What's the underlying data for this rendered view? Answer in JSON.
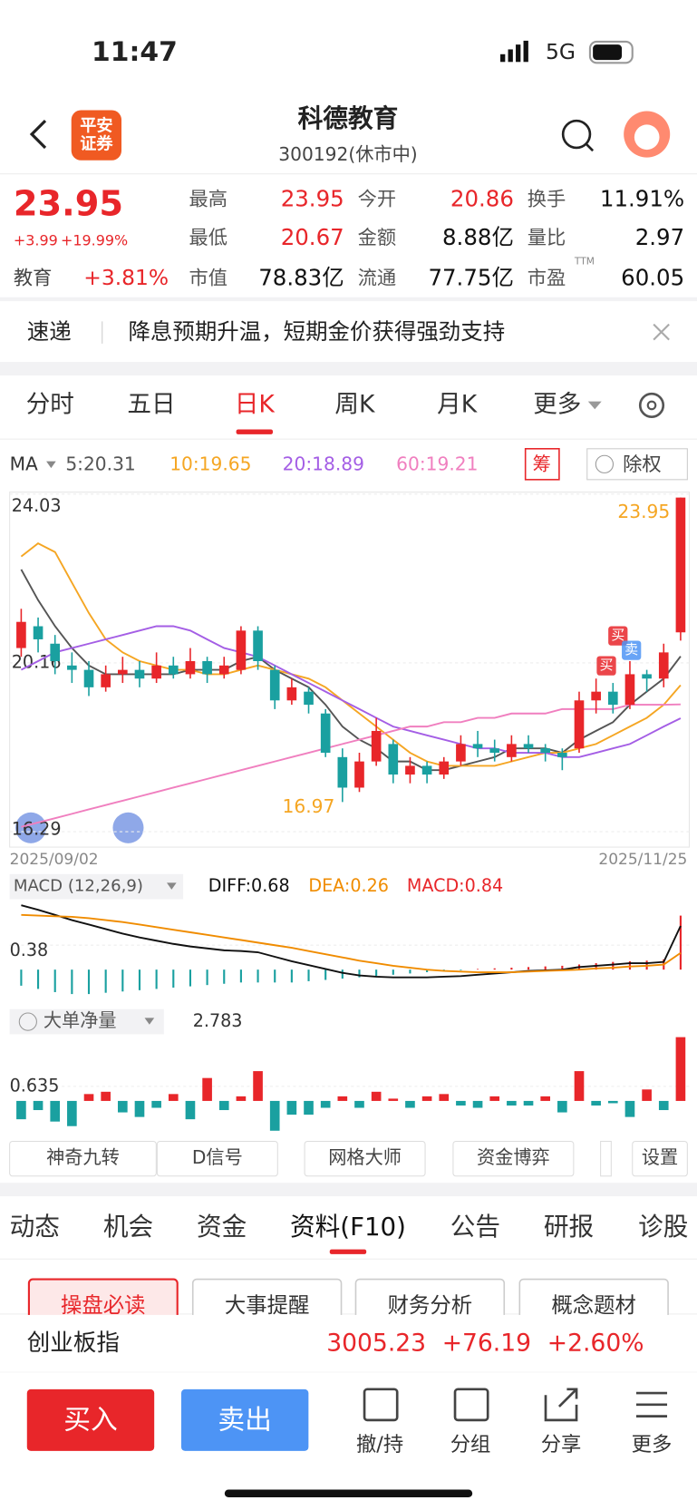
{
  "status": {
    "time": "11:47",
    "network": "5G"
  },
  "header": {
    "logo": [
      "平安",
      "证券"
    ],
    "title": "科德教育",
    "subtitle": "300192(休市中)"
  },
  "quote": {
    "price": "23.95",
    "change": "+3.99",
    "change_pct": "+19.99%",
    "sector": "教育",
    "sector_pct": "+3.81%",
    "fields": [
      [
        "最高",
        "23.95"
      ],
      [
        "今开",
        "20.86"
      ],
      [
        "换手",
        "11.91%"
      ],
      [
        "最低",
        "20.67"
      ],
      [
        "金额",
        "8.88亿"
      ],
      [
        "量比",
        "2.97"
      ],
      [
        "市值",
        "78.83亿"
      ],
      [
        "流通",
        "77.75亿"
      ],
      [
        "市盈",
        "60.05"
      ]
    ],
    "pe_suffix": "TTM"
  },
  "news": {
    "tag": "速递",
    "text": "降息预期升温，短期金价获得强劲支持"
  },
  "period_tabs": [
    "分时",
    "五日",
    "日K",
    "周K",
    "月K",
    "更多"
  ],
  "chart_data": [
    {
      "type": "candlestick",
      "legend_label": "MA",
      "legend": [
        "5:20.31",
        "10:19.65",
        "20:18.89",
        "60:19.21"
      ],
      "chip": "筹",
      "button": "除权",
      "up_color": "#e8262a",
      "down_color": "#1aa0a0",
      "categories": [
        "2025/09/02",
        null,
        null,
        null,
        null,
        null,
        null,
        null,
        null,
        null,
        null,
        null,
        null,
        null,
        null,
        null,
        null,
        null,
        null,
        null,
        null,
        null,
        null,
        null,
        null,
        null,
        null,
        null,
        null,
        null,
        null,
        null,
        null,
        null,
        null,
        null,
        null,
        null,
        null,
        "2025/11/25"
      ],
      "ohlc": [
        [
          20.5,
          21.4,
          20.3,
          21.1
        ],
        [
          21.0,
          21.2,
          20.4,
          20.7
        ],
        [
          20.6,
          20.8,
          19.9,
          20.2
        ],
        [
          20.1,
          20.4,
          19.7,
          20.0
        ],
        [
          20.0,
          20.2,
          19.4,
          19.6
        ],
        [
          19.6,
          20.1,
          19.5,
          19.9
        ],
        [
          19.9,
          20.3,
          19.7,
          20.0
        ],
        [
          20.0,
          20.2,
          19.6,
          19.8
        ],
        [
          19.8,
          20.4,
          19.7,
          20.1
        ],
        [
          20.1,
          20.3,
          19.8,
          19.9
        ],
        [
          19.9,
          20.5,
          19.8,
          20.2
        ],
        [
          20.2,
          20.3,
          19.7,
          19.9
        ],
        [
          19.9,
          20.3,
          19.8,
          20.1
        ],
        [
          20.0,
          21.0,
          19.9,
          20.9
        ],
        [
          20.9,
          21.0,
          20.0,
          20.2
        ],
        [
          20.0,
          20.1,
          19.1,
          19.3
        ],
        [
          19.3,
          19.8,
          19.2,
          19.6
        ],
        [
          19.5,
          19.6,
          19.0,
          19.2
        ],
        [
          19.0,
          19.1,
          18.0,
          18.1
        ],
        [
          18.0,
          18.2,
          16.97,
          17.3
        ],
        [
          17.3,
          18.1,
          17.2,
          17.9
        ],
        [
          17.9,
          18.9,
          17.8,
          18.6
        ],
        [
          18.3,
          18.4,
          17.4,
          17.6
        ],
        [
          17.6,
          18.0,
          17.4,
          17.8
        ],
        [
          17.8,
          17.9,
          17.4,
          17.6
        ],
        [
          17.6,
          18.0,
          17.5,
          17.9
        ],
        [
          17.9,
          18.5,
          17.8,
          18.3
        ],
        [
          18.3,
          18.6,
          18.0,
          18.2
        ],
        [
          18.2,
          18.4,
          17.9,
          18.1
        ],
        [
          18.0,
          18.5,
          17.9,
          18.3
        ],
        [
          18.3,
          18.5,
          18.1,
          18.2
        ],
        [
          18.2,
          18.3,
          17.9,
          18.1
        ],
        [
          18.1,
          18.2,
          17.7,
          18.0
        ],
        [
          18.2,
          19.5,
          18.1,
          19.3
        ],
        [
          19.3,
          19.8,
          19.0,
          19.5
        ],
        [
          19.5,
          19.7,
          19.0,
          19.2
        ],
        [
          19.2,
          20.2,
          19.1,
          19.9
        ],
        [
          19.9,
          20.0,
          19.5,
          19.8
        ],
        [
          19.8,
          20.6,
          19.6,
          20.4
        ],
        [
          20.86,
          23.95,
          20.67,
          23.95
        ]
      ],
      "series": [
        {
          "color": "#555555",
          "values": [
            22.3,
            21.6,
            21.0,
            20.5,
            20.1,
            19.9,
            19.9,
            19.9,
            19.9,
            19.9,
            20.0,
            20.0,
            20.0,
            20.2,
            20.3,
            20.0,
            19.8,
            19.6,
            19.2,
            18.7,
            18.4,
            18.2,
            17.9,
            17.9,
            17.7,
            17.7,
            17.8,
            17.9,
            18.0,
            18.2,
            18.2,
            18.2,
            18.1,
            18.4,
            18.6,
            18.8,
            19.2,
            19.5,
            19.8,
            20.31
          ]
        },
        {
          "color": "#f5a623",
          "values": [
            22.6,
            22.9,
            22.7,
            22.0,
            21.3,
            20.7,
            20.4,
            20.2,
            20.1,
            20.0,
            20.0,
            19.9,
            19.9,
            20.0,
            20.1,
            20.0,
            19.9,
            19.8,
            19.6,
            19.3,
            19.0,
            18.7,
            18.4,
            18.1,
            17.9,
            17.8,
            17.8,
            17.8,
            17.8,
            17.9,
            18.0,
            18.1,
            18.1,
            18.2,
            18.3,
            18.5,
            18.7,
            18.9,
            19.2,
            19.65
          ]
        },
        {
          "color": "#a45ee5",
          "values": [
            20.0,
            20.2,
            20.4,
            20.5,
            20.6,
            20.7,
            20.8,
            20.9,
            21.0,
            21.0,
            20.9,
            20.7,
            20.5,
            20.4,
            20.3,
            20.1,
            19.9,
            19.7,
            19.5,
            19.3,
            19.1,
            18.9,
            18.7,
            18.6,
            18.5,
            18.4,
            18.3,
            18.2,
            18.2,
            18.1,
            18.1,
            18.1,
            18.0,
            18.0,
            18.1,
            18.2,
            18.3,
            18.5,
            18.7,
            18.89
          ]
        },
        {
          "color": "#f07fbf",
          "values": [
            16.4,
            16.5,
            16.6,
            16.7,
            16.8,
            16.9,
            17.0,
            17.1,
            17.2,
            17.3,
            17.4,
            17.5,
            17.6,
            17.7,
            17.8,
            17.9,
            18.0,
            18.1,
            18.2,
            18.3,
            18.4,
            18.5,
            18.6,
            18.7,
            18.7,
            18.8,
            18.8,
            18.9,
            18.9,
            19.0,
            19.0,
            19.0,
            19.1,
            19.1,
            19.1,
            19.1,
            19.2,
            19.2,
            19.2,
            19.21
          ]
        }
      ],
      "ylim": [
        16.29,
        24.03
      ],
      "yticks": [
        24.03,
        20.16,
        16.29
      ],
      "max_label": "23.95",
      "min_label": "16.97",
      "signals": [
        "买",
        "卖",
        "买"
      ]
    },
    {
      "type": "macd",
      "title": "MACD (12,26,9)",
      "legend": [
        "DIFF:0.68",
        "DEA:0.26",
        "MACD:0.84"
      ],
      "ylim": [
        -0.45,
        1.05
      ],
      "yticks": [
        0.38
      ],
      "series": [
        {
          "color": "#111111",
          "values": [
            1.0,
            0.93,
            0.85,
            0.77,
            0.7,
            0.63,
            0.56,
            0.5,
            0.45,
            0.4,
            0.36,
            0.33,
            0.3,
            0.29,
            0.27,
            0.2,
            0.13,
            0.07,
            0.01,
            -0.05,
            -0.09,
            -0.11,
            -0.12,
            -0.12,
            -0.12,
            -0.11,
            -0.1,
            -0.08,
            -0.06,
            -0.04,
            -0.02,
            -0.01,
            0.0,
            0.04,
            0.06,
            0.08,
            0.1,
            0.1,
            0.12,
            0.68
          ]
        },
        {
          "color": "#f08c00",
          "values": [
            0.85,
            0.84,
            0.83,
            0.82,
            0.8,
            0.77,
            0.74,
            0.7,
            0.66,
            0.62,
            0.58,
            0.54,
            0.5,
            0.46,
            0.42,
            0.38,
            0.34,
            0.29,
            0.24,
            0.19,
            0.14,
            0.1,
            0.06,
            0.03,
            0.0,
            -0.02,
            -0.03,
            -0.04,
            -0.04,
            -0.04,
            -0.03,
            -0.02,
            -0.01,
            0.0,
            0.02,
            0.03,
            0.05,
            0.06,
            0.08,
            0.26
          ]
        }
      ],
      "histogram": [
        -0.25,
        -0.3,
        -0.35,
        -0.38,
        -0.38,
        -0.36,
        -0.34,
        -0.32,
        -0.3,
        -0.28,
        -0.26,
        -0.24,
        -0.22,
        -0.2,
        -0.2,
        -0.2,
        -0.2,
        -0.18,
        -0.16,
        -0.14,
        -0.12,
        -0.1,
        -0.08,
        -0.06,
        -0.04,
        -0.02,
        -0.01,
        0.01,
        0.02,
        0.03,
        0.04,
        0.05,
        0.06,
        0.08,
        0.1,
        0.12,
        0.13,
        0.14,
        0.16,
        0.84
      ]
    },
    {
      "type": "bar",
      "title": "大单净量",
      "latest_label": "2.783",
      "ylim": [
        -1.3,
        2.783
      ],
      "yticks": [
        0.635
      ],
      "values": [
        -0.8,
        -0.4,
        -0.9,
        -1.1,
        0.3,
        0.4,
        -0.5,
        -0.7,
        -0.3,
        0.3,
        -0.8,
        1.0,
        -0.4,
        0.2,
        1.3,
        -1.3,
        -0.6,
        -0.6,
        -0.3,
        0.2,
        -0.3,
        0.4,
        0.1,
        -0.3,
        0.2,
        0.3,
        -0.2,
        -0.3,
        0.2,
        -0.2,
        -0.2,
        0.2,
        -0.5,
        1.3,
        -0.2,
        -0.1,
        -0.7,
        0.5,
        -0.4,
        2.783
      ]
    }
  ],
  "tool_buttons": [
    "神奇九转",
    "D信号",
    "网格大师",
    "资金博弈",
    "设置"
  ],
  "info_tabs": [
    "动态",
    "机会",
    "资金",
    "资料(F10)",
    "公告",
    "研报",
    "诊股"
  ],
  "sub_buttons": [
    "操盘必读",
    "大事提醒",
    "财务分析",
    "概念题材"
  ],
  "index": {
    "name": "创业板指",
    "value": "3005.23",
    "change": "+76.19",
    "pct": "+2.60%"
  },
  "actions": {
    "buy": "买入",
    "sell": "卖出",
    "tools": [
      "撤/持",
      "分组",
      "分享",
      "更多"
    ]
  }
}
